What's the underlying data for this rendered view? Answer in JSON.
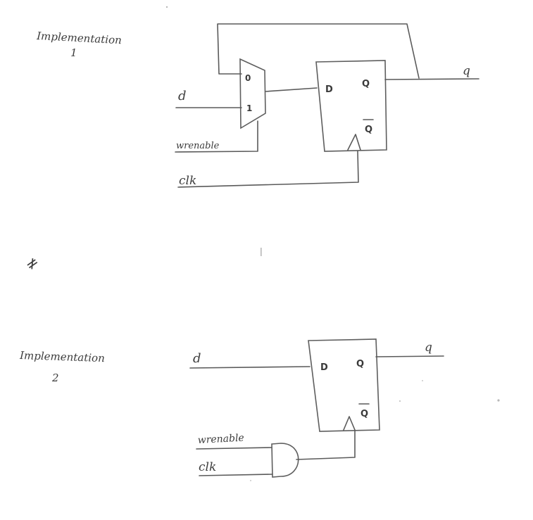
{
  "implementation_1": {
    "label_line1": "Implementation",
    "label_line2": "1",
    "mux_input_0": "0",
    "mux_input_1": "1",
    "ff_d": "D",
    "ff_q": "Q",
    "ff_qbar": "Q",
    "signal_d": "d",
    "signal_wrenable": "wrenable",
    "signal_clk": "clk",
    "signal_q": "q"
  },
  "separator_mark": "≠",
  "implementation_2": {
    "label_line1": "Implementation",
    "label_line2": "2",
    "ff_d": "D",
    "ff_q": "Q",
    "ff_qbar": "Q",
    "signal_d": "d",
    "signal_wrenable": "wrenable",
    "signal_clk": "clk",
    "signal_q": "q"
  }
}
